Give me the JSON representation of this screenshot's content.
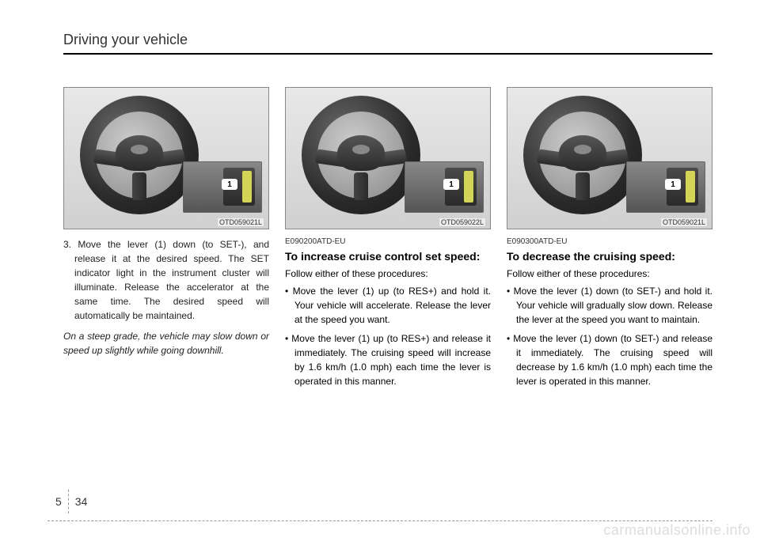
{
  "header": {
    "section_title": "Driving your vehicle"
  },
  "columns": [
    {
      "figure": {
        "code": "OTD059021L",
        "indicator": "1"
      },
      "step": "3. Move the lever (1) down (to SET-), and release it at the desired speed. The SET indicator light in the instrument cluster will illuminate. Release the accelerator at the same time. The desired speed will automatically be maintained.",
      "note": "On a steep grade, the vehicle may slow down or speed up slightly while going downhill."
    },
    {
      "figure": {
        "code": "OTD059022L",
        "indicator": "1"
      },
      "code_label": "E090200ATD-EU",
      "subheading": "To increase cruise control set speed:",
      "intro": "Follow either of these procedures:",
      "bullets": [
        "Move the lever (1) up (to RES+) and hold it. Your vehicle will accelerate. Release the lever at the speed you want.",
        "Move the lever (1) up (to RES+) and release it immediately. The cruising speed will increase by 1.6 km/h (1.0 mph) each time the lever is operated in this manner."
      ]
    },
    {
      "figure": {
        "code": "OTD059021L",
        "indicator": "1"
      },
      "code_label": "E090300ATD-EU",
      "subheading": "To decrease the cruising speed:",
      "intro": "Follow either of these procedures:",
      "bullets": [
        "Move the lever (1) down (to SET-) and hold it. Your vehicle will gradually slow down. Release the lever at the speed you want to maintain.",
        "Move the lever (1) down (to SET-) and release it immediately. The cruising speed will decrease by 1.6 km/h (1.0 mph) each time the lever is operated in this manner."
      ]
    }
  ],
  "footer": {
    "section_number": "5",
    "page_number": "34"
  },
  "watermark": "carmanualsonline.info"
}
